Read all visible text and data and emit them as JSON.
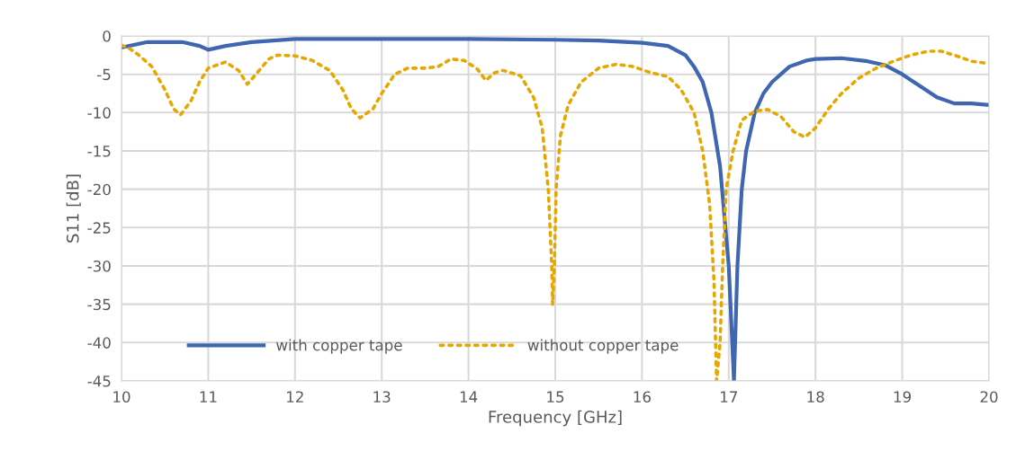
{
  "chart_data": {
    "type": "line",
    "xlabel": "Frequency [GHz]",
    "ylabel": "S11 [dB]",
    "xlim": [
      10,
      20
    ],
    "xticks": [
      10,
      11,
      12,
      13,
      14,
      15,
      16,
      17,
      18,
      19,
      20
    ],
    "ylim": [
      -45,
      0
    ],
    "yticks": [
      -45,
      -40,
      -35,
      -30,
      -25,
      -20,
      -15,
      -10,
      -5,
      0
    ],
    "grid": true,
    "legend": "bottom",
    "marker": "none",
    "series": [
      {
        "name": "with copper tape",
        "color": "#3f66b0",
        "line_style": "solid",
        "x": [
          10,
          10.3,
          10.7,
          10.9,
          11.0,
          11.2,
          11.5,
          12,
          13,
          14,
          15,
          15.5,
          16,
          16.3,
          16.5,
          16.6,
          16.7,
          16.8,
          16.9,
          17.0,
          17.06,
          17.1,
          17.15,
          17.2,
          17.3,
          17.4,
          17.5,
          17.7,
          17.9,
          18.0,
          18.3,
          18.6,
          18.8,
          19.0,
          19.2,
          19.4,
          19.6,
          19.8,
          20
        ],
        "values": [
          -1.5,
          -0.8,
          -0.8,
          -1.3,
          -1.8,
          -1.3,
          -0.8,
          -0.4,
          -0.4,
          -0.4,
          -0.5,
          -0.6,
          -0.9,
          -1.3,
          -2.5,
          -4,
          -6,
          -10,
          -17,
          -30,
          -45,
          -30,
          -20,
          -15,
          -10,
          -7.5,
          -6,
          -4,
          -3.2,
          -3.0,
          -2.9,
          -3.3,
          -3.8,
          -5,
          -6.5,
          -8,
          -8.8,
          -8.8,
          -9
        ]
      },
      {
        "name": "without copper tape",
        "color": "#e6a800",
        "line_style": "dotted",
        "x": [
          10,
          10.1,
          10.2,
          10.35,
          10.5,
          10.6,
          10.68,
          10.8,
          10.9,
          11.0,
          11.2,
          11.35,
          11.45,
          11.55,
          11.7,
          11.8,
          12.0,
          12.2,
          12.4,
          12.55,
          12.65,
          12.75,
          12.9,
          13.0,
          13.15,
          13.3,
          13.5,
          13.65,
          13.8,
          13.95,
          14.1,
          14.2,
          14.3,
          14.4,
          14.6,
          14.75,
          14.85,
          14.92,
          14.96,
          14.97,
          14.99,
          15.01,
          15.06,
          15.15,
          15.3,
          15.5,
          15.7,
          15.9,
          16.1,
          16.3,
          16.45,
          16.6,
          16.7,
          16.78,
          16.83,
          16.86,
          16.9,
          16.93,
          16.97,
          17.05,
          17.15,
          17.3,
          17.45,
          17.6,
          17.75,
          17.88,
          18.0,
          18.15,
          18.3,
          18.5,
          18.7,
          18.9,
          19.1,
          19.3,
          19.45,
          19.6,
          19.8,
          20
        ],
        "values": [
          -1.2,
          -1.7,
          -2.5,
          -4,
          -7,
          -9.5,
          -10.3,
          -8.5,
          -6,
          -4.2,
          -3.4,
          -4.5,
          -6.3,
          -5,
          -3,
          -2.5,
          -2.6,
          -3.2,
          -4.5,
          -7,
          -9.5,
          -10.7,
          -9.5,
          -7.5,
          -5,
          -4.2,
          -4.2,
          -4,
          -3,
          -3.2,
          -4.3,
          -5.8,
          -4.8,
          -4.5,
          -5.2,
          -8,
          -12,
          -20,
          -30,
          -35,
          -30,
          -20,
          -13,
          -9,
          -6,
          -4.2,
          -3.7,
          -4,
          -4.8,
          -5.3,
          -7,
          -10,
          -15,
          -22,
          -32,
          -45,
          -40,
          -30,
          -20,
          -15,
          -11,
          -9.8,
          -9.6,
          -10.5,
          -12.5,
          -13.2,
          -12,
          -9.5,
          -7.5,
          -5.5,
          -4.2,
          -3.3,
          -2.5,
          -2.0,
          -2.0,
          -2.5,
          -3.3,
          -3.6
        ]
      }
    ]
  }
}
